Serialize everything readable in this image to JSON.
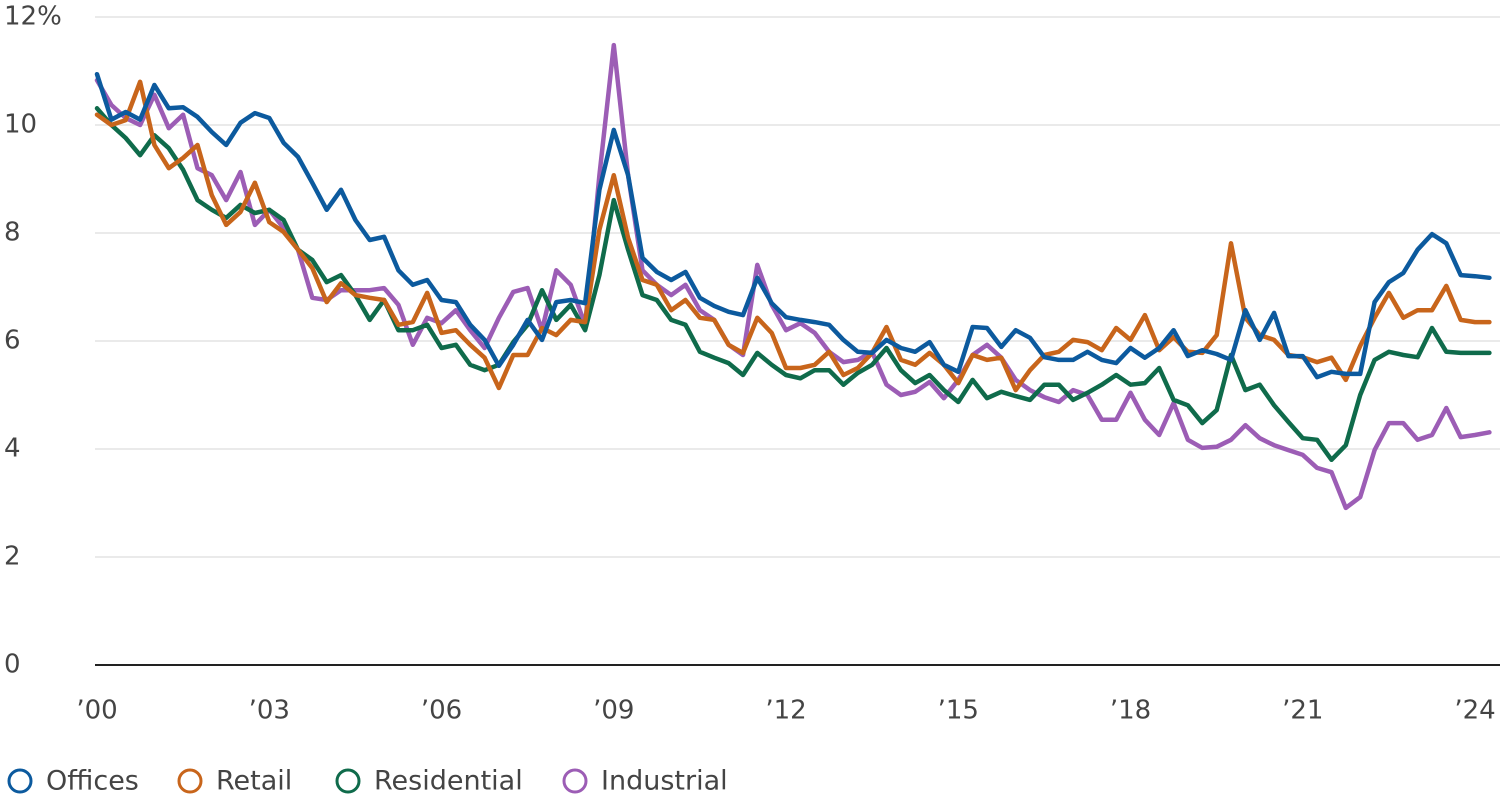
{
  "chart_data": {
    "type": "line",
    "x": [
      2000,
      2000.25,
      2000.5,
      2000.75,
      2001,
      2001.25,
      2001.5,
      2001.75,
      2002,
      2002.25,
      2002.5,
      2002.75,
      2003,
      2003.25,
      2003.5,
      2003.75,
      2004,
      2004.25,
      2004.5,
      2004.75,
      2005,
      2005.25,
      2005.5,
      2005.75,
      2006,
      2006.25,
      2006.5,
      2006.75,
      2007,
      2007.25,
      2007.5,
      2007.75,
      2008,
      2008.25,
      2008.5,
      2008.75,
      2009,
      2009.25,
      2009.5,
      2009.75,
      2010,
      2010.25,
      2010.5,
      2010.75,
      2011,
      2011.25,
      2011.5,
      2011.75,
      2012,
      2012.25,
      2012.5,
      2012.75,
      2013,
      2013.25,
      2013.5,
      2013.75,
      2014,
      2014.25,
      2014.5,
      2014.75,
      2015,
      2015.25,
      2015.5,
      2015.75,
      2016,
      2016.25,
      2016.5,
      2016.75,
      2017,
      2017.25,
      2017.5,
      2017.75,
      2018,
      2018.25,
      2018.5,
      2018.75,
      2019,
      2019.25,
      2019.5,
      2019.75,
      2020,
      2020.25,
      2020.5,
      2020.75,
      2021,
      2021.25,
      2021.5,
      2021.75,
      2022,
      2022.25,
      2022.5,
      2022.75,
      2023,
      2023.25,
      2023.5,
      2023.75,
      2024,
      2024.25
    ],
    "series": [
      {
        "name": "Offices",
        "color": "#0c5a9e",
        "values": [
          10.94,
          10.1,
          10.24,
          10.1,
          10.74,
          10.31,
          10.33,
          10.15,
          9.87,
          9.63,
          10.04,
          10.22,
          10.13,
          9.67,
          9.41,
          8.93,
          8.43,
          8.8,
          8.24,
          7.87,
          7.93,
          7.31,
          7.04,
          7.13,
          6.76,
          6.72,
          6.3,
          6.02,
          5.54,
          5.93,
          6.39,
          6.02,
          6.72,
          6.76,
          6.7,
          8.8,
          9.91,
          9.07,
          7.54,
          7.28,
          7.13,
          7.28,
          6.8,
          6.65,
          6.54,
          6.48,
          7.17,
          6.7,
          6.44,
          6.39,
          6.35,
          6.3,
          6.02,
          5.8,
          5.78,
          6.02,
          5.87,
          5.8,
          5.98,
          5.56,
          5.43,
          6.26,
          6.24,
          5.89,
          6.2,
          6.06,
          5.7,
          5.65,
          5.65,
          5.8,
          5.65,
          5.59,
          5.87,
          5.69,
          5.87,
          6.2,
          5.72,
          5.83,
          5.76,
          5.65,
          6.57,
          6.02,
          6.52,
          5.72,
          5.72,
          5.33,
          5.43,
          5.39,
          5.39,
          6.72,
          7.09,
          7.26,
          7.69,
          7.98,
          7.81,
          7.22,
          7.2,
          7.17
        ]
      },
      {
        "name": "Retail",
        "color": "#c8651b",
        "values": [
          10.19,
          10.0,
          10.09,
          10.8,
          9.63,
          9.2,
          9.39,
          9.63,
          8.7,
          8.15,
          8.39,
          8.93,
          8.2,
          8.02,
          7.69,
          7.35,
          6.72,
          7.07,
          6.85,
          6.8,
          6.76,
          6.3,
          6.35,
          6.89,
          6.15,
          6.2,
          5.93,
          5.69,
          5.13,
          5.74,
          5.74,
          6.24,
          6.11,
          6.39,
          6.35,
          8.06,
          9.07,
          7.91,
          7.13,
          7.04,
          6.57,
          6.76,
          6.43,
          6.39,
          5.93,
          5.78,
          6.43,
          6.15,
          5.5,
          5.5,
          5.56,
          5.8,
          5.37,
          5.5,
          5.78,
          6.26,
          5.65,
          5.56,
          5.78,
          5.56,
          5.22,
          5.74,
          5.65,
          5.69,
          5.09,
          5.46,
          5.74,
          5.8,
          6.02,
          5.98,
          5.83,
          6.24,
          6.02,
          6.48,
          5.83,
          6.07,
          5.8,
          5.78,
          6.11,
          7.81,
          6.43,
          6.11,
          6.02,
          5.74,
          5.7,
          5.61,
          5.69,
          5.28,
          5.91,
          6.43,
          6.89,
          6.43,
          6.57,
          6.57,
          7.02,
          6.39,
          6.35,
          6.35
        ]
      },
      {
        "name": "Residential",
        "color": "#0f6b4b",
        "values": [
          10.31,
          10.0,
          9.76,
          9.44,
          9.81,
          9.57,
          9.17,
          8.61,
          8.43,
          8.28,
          8.52,
          8.37,
          8.43,
          8.24,
          7.69,
          7.5,
          7.09,
          7.22,
          6.85,
          6.39,
          6.76,
          6.2,
          6.2,
          6.3,
          5.87,
          5.93,
          5.56,
          5.46,
          5.56,
          5.98,
          6.3,
          6.94,
          6.39,
          6.67,
          6.2,
          7.22,
          8.61,
          7.69,
          6.85,
          6.76,
          6.39,
          6.3,
          5.8,
          5.69,
          5.59,
          5.37,
          5.78,
          5.56,
          5.37,
          5.31,
          5.46,
          5.46,
          5.19,
          5.41,
          5.56,
          5.87,
          5.46,
          5.22,
          5.37,
          5.09,
          4.87,
          5.28,
          4.94,
          5.06,
          4.98,
          4.91,
          5.19,
          5.19,
          4.91,
          5.04,
          5.19,
          5.37,
          5.19,
          5.22,
          5.5,
          4.91,
          4.81,
          4.48,
          4.72,
          5.74,
          5.09,
          5.19,
          4.81,
          4.5,
          4.2,
          4.17,
          3.8,
          4.07,
          5.0,
          5.65,
          5.8,
          5.74,
          5.7,
          6.24,
          5.8,
          5.78,
          5.78,
          5.78
        ]
      },
      {
        "name": "Industrial",
        "color": "#9c5db5",
        "values": [
          10.83,
          10.37,
          10.13,
          10.0,
          10.56,
          9.94,
          10.19,
          9.2,
          9.07,
          8.61,
          9.13,
          8.15,
          8.43,
          8.09,
          7.69,
          6.8,
          6.76,
          6.94,
          6.94,
          6.94,
          6.98,
          6.67,
          5.93,
          6.43,
          6.33,
          6.57,
          6.2,
          5.87,
          6.43,
          6.91,
          6.98,
          6.2,
          7.31,
          7.04,
          6.3,
          9.07,
          11.48,
          9.07,
          7.31,
          7.04,
          6.85,
          7.04,
          6.57,
          6.39,
          5.93,
          5.74,
          7.41,
          6.67,
          6.2,
          6.33,
          6.15,
          5.8,
          5.61,
          5.65,
          5.8,
          5.19,
          5.0,
          5.06,
          5.24,
          4.94,
          5.28,
          5.74,
          5.93,
          5.69,
          5.28,
          5.09,
          4.96,
          4.87,
          5.09,
          5.0,
          4.54,
          4.54,
          5.04,
          4.54,
          4.26,
          4.85,
          4.17,
          4.02,
          4.04,
          4.17,
          4.44,
          4.2,
          4.07,
          3.98,
          3.89,
          3.65,
          3.57,
          2.91,
          3.11,
          3.98,
          4.48,
          4.48,
          4.17,
          4.26,
          4.76,
          4.22,
          4.26,
          4.31
        ]
      }
    ],
    "xlim": [
      2000,
      2024.4
    ],
    "xticks": [
      {
        "value": 2000,
        "label": "’00"
      },
      {
        "value": 2003,
        "label": "’03"
      },
      {
        "value": 2006,
        "label": "’06"
      },
      {
        "value": 2009,
        "label": "’09"
      },
      {
        "value": 2012,
        "label": "’12"
      },
      {
        "value": 2015,
        "label": "’15"
      },
      {
        "value": 2018,
        "label": "’18"
      },
      {
        "value": 2021,
        "label": "’21"
      },
      {
        "value": 2024,
        "label": "’24"
      }
    ],
    "ylim": [
      0,
      12
    ],
    "yticks": [
      0,
      2,
      4,
      6,
      8,
      10,
      {
        "value": 12,
        "label": "12%"
      }
    ],
    "grid": true,
    "legend": "bottom"
  }
}
